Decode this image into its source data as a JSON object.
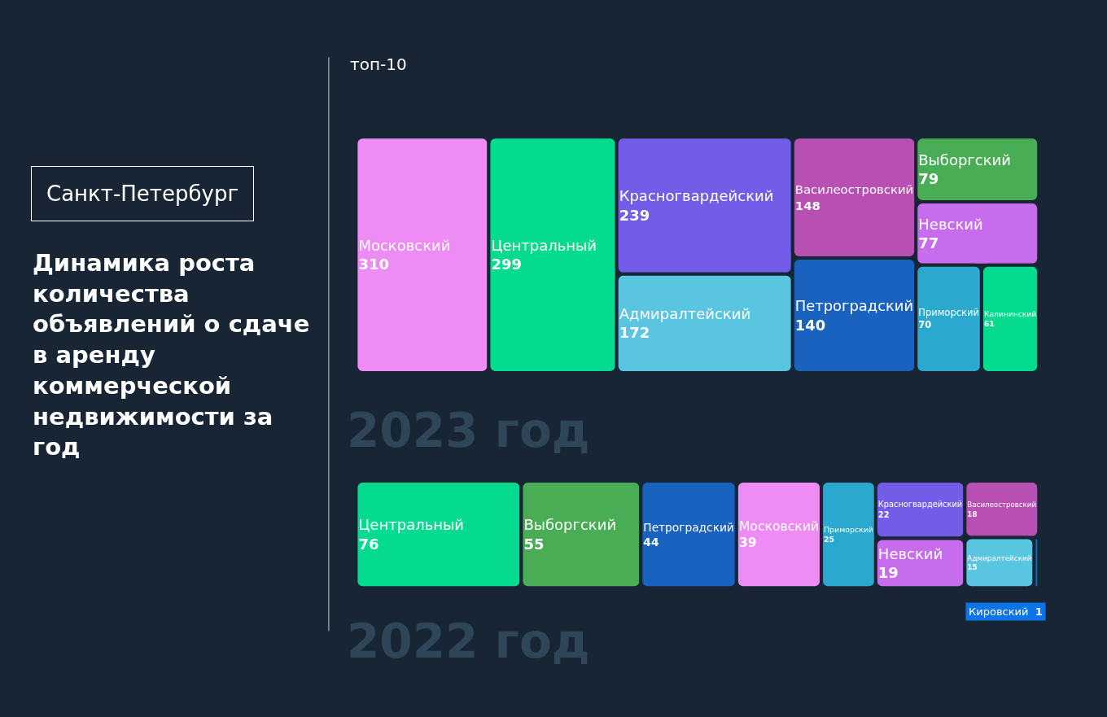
{
  "chart_data": [
    {
      "type": "other",
      "title": "Динамика роста количества объявлений о сдаче в аренду коммерческой недвижимости за год",
      "annotations": [
        "Санкт-Петербург",
        "топ-10"
      ],
      "xlabel": "2023 год",
      "categories": [
        "Московский",
        "Центральный",
        "Красногвардейский",
        "Адмиралтейский",
        "Василеостровский",
        "Петроградский",
        "Выборгский",
        "Невский",
        "Приморский",
        "Калининский"
      ],
      "values": [
        310,
        299,
        239,
        172,
        148,
        140,
        79,
        77,
        70,
        61
      ],
      "colors": [
        "#ef8bf5",
        "#05db8f",
        "#735ce8",
        "#5ac5e0",
        "#b84fb3",
        "#1a62c0",
        "#48ad55",
        "#c76cec",
        "#2aa8d0",
        "#05db8f"
      ],
      "data_labels": true
    },
    {
      "type": "other",
      "xlabel": "2022 год",
      "categories": [
        "Центральный",
        "Выборгский",
        "Петроградский",
        "Московский",
        "Приморский",
        "Красногвардейский",
        "Невский",
        "Василеостровский",
        "Адмиралтейский",
        "Кировский"
      ],
      "values": [
        76,
        55,
        44,
        39,
        25,
        22,
        19,
        18,
        15,
        1
      ],
      "colors": [
        "#05db8f",
        "#48ad55",
        "#1a62c0",
        "#ef8bf5",
        "#2aa8d0",
        "#735ce8",
        "#c76cec",
        "#b84fb3",
        "#5ac5e0",
        "#0a74e8"
      ],
      "data_labels": true
    }
  ]
}
